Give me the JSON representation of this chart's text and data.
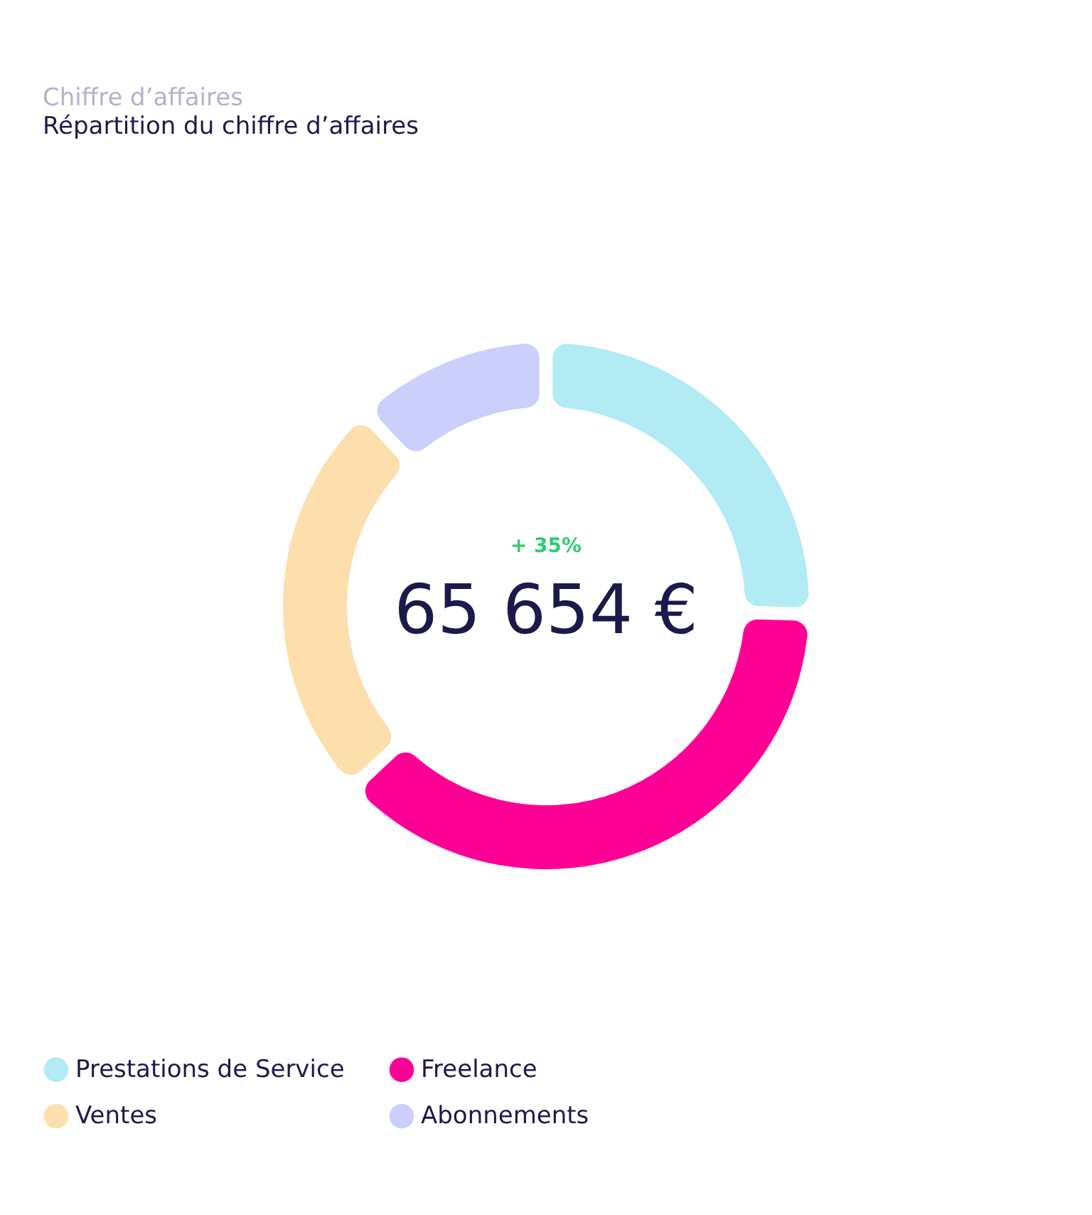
{
  "chart_data": {
    "type": "donut",
    "title": "Chiffre d’affaires",
    "subtitle": "Répartition du chiffre d’affaires",
    "categories": [
      "Prestations de Service",
      "Freelance",
      "Ventes",
      "Abonnements"
    ],
    "values": [
      25.5,
      37.5,
      25,
      12
    ],
    "colors": [
      "#b3ebf4",
      "#ff0096",
      "#fddfad",
      "#cbcffb"
    ],
    "legend": "bottom",
    "annotations": [
      "+ 35%",
      "65 654 €"
    ]
  }
}
